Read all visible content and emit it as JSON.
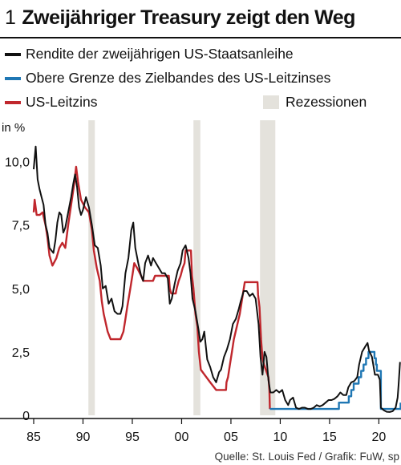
{
  "chart_number": "1",
  "chart_data": {
    "type": "line",
    "title": "Zweijähriger Treasury zeigt den Weg",
    "ylabel": "in %",
    "source": "Quelle: St. Louis Fed / Grafik: FuW, sp",
    "xlim": [
      1985,
      2022
    ],
    "ylim": [
      0,
      11
    ],
    "x_ticks": [
      {
        "value": 1985,
        "label": "85"
      },
      {
        "value": 1990,
        "label": "90"
      },
      {
        "value": 1995,
        "label": "95"
      },
      {
        "value": 2000,
        "label": "00"
      },
      {
        "value": 2005,
        "label": "05"
      },
      {
        "value": 2010,
        "label": "10"
      },
      {
        "value": 2015,
        "label": "15"
      },
      {
        "value": 2020,
        "label": "20"
      }
    ],
    "y_ticks": [
      {
        "value": 0,
        "label": "0"
      },
      {
        "value": 2.5,
        "label": "2,5"
      },
      {
        "value": 5,
        "label": "5,0"
      },
      {
        "value": 7.5,
        "label": "7,5"
      },
      {
        "value": 10,
        "label": "10,0"
      }
    ],
    "recessions_label": "Rezessionen",
    "recessions": [
      [
        1990.55,
        1991.2
      ],
      [
        2001.2,
        2001.9
      ],
      [
        2007.95,
        2009.5
      ]
    ],
    "series": [
      {
        "name": "Rendite der zweijährigen US-Staatsanleihe",
        "color": "#111111",
        "points": [
          [
            1985.0,
            9.7
          ],
          [
            1985.2,
            10.6
          ],
          [
            1985.4,
            9.3
          ],
          [
            1985.6,
            8.9
          ],
          [
            1985.8,
            8.6
          ],
          [
            1986.0,
            8.3
          ],
          [
            1986.2,
            7.5
          ],
          [
            1986.4,
            7.2
          ],
          [
            1986.6,
            6.6
          ],
          [
            1986.8,
            6.5
          ],
          [
            1987.0,
            6.4
          ],
          [
            1987.2,
            6.9
          ],
          [
            1987.4,
            7.6
          ],
          [
            1987.6,
            8.0
          ],
          [
            1987.8,
            7.9
          ],
          [
            1988.0,
            7.2
          ],
          [
            1988.2,
            7.4
          ],
          [
            1988.5,
            8.0
          ],
          [
            1988.8,
            8.6
          ],
          [
            1989.0,
            9.1
          ],
          [
            1989.2,
            9.5
          ],
          [
            1989.4,
            9.0
          ],
          [
            1989.6,
            8.2
          ],
          [
            1989.8,
            7.9
          ],
          [
            1990.0,
            8.1
          ],
          [
            1990.3,
            8.6
          ],
          [
            1990.6,
            8.2
          ],
          [
            1990.9,
            7.5
          ],
          [
            1991.2,
            6.7
          ],
          [
            1991.5,
            6.6
          ],
          [
            1991.8,
            5.9
          ],
          [
            1992.0,
            5.0
          ],
          [
            1992.3,
            5.1
          ],
          [
            1992.6,
            4.4
          ],
          [
            1992.9,
            4.6
          ],
          [
            1993.2,
            4.1
          ],
          [
            1993.5,
            4.0
          ],
          [
            1993.8,
            4.0
          ],
          [
            1994.0,
            4.3
          ],
          [
            1994.3,
            5.6
          ],
          [
            1994.6,
            6.2
          ],
          [
            1994.9,
            7.3
          ],
          [
            1995.1,
            7.6
          ],
          [
            1995.3,
            6.6
          ],
          [
            1995.6,
            6.0
          ],
          [
            1995.9,
            5.5
          ],
          [
            1996.1,
            5.3
          ],
          [
            1996.3,
            6.0
          ],
          [
            1996.6,
            6.3
          ],
          [
            1996.9,
            5.9
          ],
          [
            1997.1,
            6.2
          ],
          [
            1997.4,
            6.0
          ],
          [
            1997.7,
            5.8
          ],
          [
            1998.0,
            5.6
          ],
          [
            1998.3,
            5.6
          ],
          [
            1998.6,
            5.4
          ],
          [
            1998.8,
            4.4
          ],
          [
            1999.0,
            4.6
          ],
          [
            1999.3,
            5.2
          ],
          [
            1999.6,
            5.7
          ],
          [
            1999.9,
            6.0
          ],
          [
            2000.1,
            6.5
          ],
          [
            2000.4,
            6.7
          ],
          [
            2000.7,
            6.2
          ],
          [
            2000.9,
            5.6
          ],
          [
            2001.1,
            4.6
          ],
          [
            2001.4,
            4.1
          ],
          [
            2001.7,
            3.4
          ],
          [
            2001.9,
            2.9
          ],
          [
            2002.1,
            3.0
          ],
          [
            2002.3,
            3.3
          ],
          [
            2002.6,
            2.2
          ],
          [
            2002.9,
            1.9
          ],
          [
            2003.2,
            1.5
          ],
          [
            2003.5,
            1.3
          ],
          [
            2003.8,
            1.7
          ],
          [
            2004.0,
            1.8
          ],
          [
            2004.3,
            2.3
          ],
          [
            2004.6,
            2.6
          ],
          [
            2004.9,
            3.0
          ],
          [
            2005.2,
            3.6
          ],
          [
            2005.5,
            3.8
          ],
          [
            2005.8,
            4.2
          ],
          [
            2006.0,
            4.5
          ],
          [
            2006.3,
            4.9
          ],
          [
            2006.6,
            4.9
          ],
          [
            2006.9,
            4.7
          ],
          [
            2007.2,
            4.8
          ],
          [
            2007.5,
            4.6
          ],
          [
            2007.8,
            3.6
          ],
          [
            2008.0,
            2.3
          ],
          [
            2008.2,
            1.6
          ],
          [
            2008.4,
            2.5
          ],
          [
            2008.6,
            2.3
          ],
          [
            2008.8,
            1.4
          ],
          [
            2009.0,
            0.9
          ],
          [
            2009.3,
            0.9
          ],
          [
            2009.6,
            1.0
          ],
          [
            2009.9,
            0.9
          ],
          [
            2010.2,
            1.0
          ],
          [
            2010.5,
            0.6
          ],
          [
            2010.8,
            0.4
          ],
          [
            2011.0,
            0.6
          ],
          [
            2011.3,
            0.7
          ],
          [
            2011.6,
            0.3
          ],
          [
            2011.9,
            0.25
          ],
          [
            2012.2,
            0.3
          ],
          [
            2012.5,
            0.3
          ],
          [
            2012.8,
            0.25
          ],
          [
            2013.1,
            0.25
          ],
          [
            2013.4,
            0.3
          ],
          [
            2013.7,
            0.4
          ],
          [
            2014.0,
            0.35
          ],
          [
            2014.3,
            0.4
          ],
          [
            2014.6,
            0.5
          ],
          [
            2014.9,
            0.6
          ],
          [
            2015.2,
            0.6
          ],
          [
            2015.5,
            0.65
          ],
          [
            2015.8,
            0.75
          ],
          [
            2016.1,
            0.9
          ],
          [
            2016.4,
            0.8
          ],
          [
            2016.7,
            0.8
          ],
          [
            2016.9,
            1.1
          ],
          [
            2017.2,
            1.3
          ],
          [
            2017.5,
            1.35
          ],
          [
            2017.8,
            1.5
          ],
          [
            2018.0,
            2.0
          ],
          [
            2018.3,
            2.5
          ],
          [
            2018.6,
            2.7
          ],
          [
            2018.85,
            2.85
          ],
          [
            2019.0,
            2.55
          ],
          [
            2019.3,
            2.3
          ],
          [
            2019.6,
            1.6
          ],
          [
            2019.9,
            1.6
          ],
          [
            2020.1,
            1.4
          ],
          [
            2020.2,
            0.3
          ],
          [
            2020.5,
            0.2
          ],
          [
            2020.8,
            0.14
          ],
          [
            2021.1,
            0.13
          ],
          [
            2021.4,
            0.16
          ],
          [
            2021.7,
            0.3
          ],
          [
            2021.9,
            0.7
          ],
          [
            2022.0,
            1.2
          ],
          [
            2022.15,
            2.1
          ]
        ]
      },
      {
        "name": "Obere Grenze des Zielbandes des US-Leitzinses",
        "color": "#1f77b4",
        "points": [
          [
            2008.95,
            0.25
          ],
          [
            2015.95,
            0.25
          ],
          [
            2015.95,
            0.5
          ],
          [
            2016.95,
            0.5
          ],
          [
            2016.95,
            0.75
          ],
          [
            2017.2,
            0.75
          ],
          [
            2017.2,
            1.0
          ],
          [
            2017.45,
            1.0
          ],
          [
            2017.45,
            1.25
          ],
          [
            2017.95,
            1.25
          ],
          [
            2017.95,
            1.5
          ],
          [
            2018.2,
            1.5
          ],
          [
            2018.2,
            1.75
          ],
          [
            2018.45,
            1.75
          ],
          [
            2018.45,
            2.0
          ],
          [
            2018.7,
            2.0
          ],
          [
            2018.7,
            2.25
          ],
          [
            2018.95,
            2.25
          ],
          [
            2018.95,
            2.5
          ],
          [
            2019.55,
            2.5
          ],
          [
            2019.55,
            2.25
          ],
          [
            2019.7,
            2.25
          ],
          [
            2019.7,
            2.0
          ],
          [
            2019.8,
            2.0
          ],
          [
            2019.8,
            1.75
          ],
          [
            2020.2,
            1.75
          ],
          [
            2020.2,
            0.25
          ],
          [
            2022.2,
            0.25
          ],
          [
            2022.2,
            0.5
          ]
        ]
      },
      {
        "name": "US-Leitzins",
        "color": "#c0272d",
        "points": [
          [
            1985.0,
            8.0
          ],
          [
            1985.1,
            8.5
          ],
          [
            1985.3,
            7.9
          ],
          [
            1985.6,
            7.9
          ],
          [
            1985.9,
            8.0
          ],
          [
            1986.2,
            7.5
          ],
          [
            1986.4,
            7.0
          ],
          [
            1986.6,
            6.3
          ],
          [
            1986.9,
            5.9
          ],
          [
            1987.3,
            6.2
          ],
          [
            1987.6,
            6.6
          ],
          [
            1987.9,
            6.8
          ],
          [
            1988.2,
            6.6
          ],
          [
            1988.5,
            7.5
          ],
          [
            1988.8,
            8.3
          ],
          [
            1989.1,
            9.1
          ],
          [
            1989.3,
            9.8
          ],
          [
            1989.5,
            9.2
          ],
          [
            1989.8,
            8.5
          ],
          [
            1990.2,
            8.2
          ],
          [
            1990.6,
            8.0
          ],
          [
            1990.9,
            7.3
          ],
          [
            1991.1,
            6.5
          ],
          [
            1991.4,
            5.8
          ],
          [
            1991.7,
            5.3
          ],
          [
            1991.9,
            4.5
          ],
          [
            1992.1,
            4.0
          ],
          [
            1992.5,
            3.3
          ],
          [
            1992.8,
            3.0
          ],
          [
            1993.8,
            3.0
          ],
          [
            1994.1,
            3.3
          ],
          [
            1994.3,
            3.8
          ],
          [
            1994.5,
            4.3
          ],
          [
            1994.8,
            5.0
          ],
          [
            1995.0,
            5.5
          ],
          [
            1995.2,
            6.0
          ],
          [
            1995.5,
            5.8
          ],
          [
            1995.9,
            5.5
          ],
          [
            1996.1,
            5.3
          ],
          [
            1997.1,
            5.3
          ],
          [
            1997.3,
            5.5
          ],
          [
            1998.7,
            5.5
          ],
          [
            1998.8,
            5.0
          ],
          [
            1998.95,
            4.8
          ],
          [
            1999.4,
            4.8
          ],
          [
            1999.5,
            5.0
          ],
          [
            1999.7,
            5.3
          ],
          [
            1999.9,
            5.5
          ],
          [
            2000.1,
            5.8
          ],
          [
            2000.3,
            6.0
          ],
          [
            2000.4,
            6.5
          ],
          [
            2000.95,
            6.5
          ],
          [
            2001.05,
            5.5
          ],
          [
            2001.2,
            5.0
          ],
          [
            2001.4,
            4.0
          ],
          [
            2001.6,
            3.5
          ],
          [
            2001.75,
            2.5
          ],
          [
            2001.95,
            1.8
          ],
          [
            2002.9,
            1.3
          ],
          [
            2003.5,
            1.0
          ],
          [
            2004.5,
            1.0
          ],
          [
            2004.55,
            1.3
          ],
          [
            2004.7,
            1.5
          ],
          [
            2004.9,
            2.0
          ],
          [
            2005.1,
            2.5
          ],
          [
            2005.3,
            3.0
          ],
          [
            2005.6,
            3.5
          ],
          [
            2005.9,
            4.0
          ],
          [
            2006.1,
            4.5
          ],
          [
            2006.4,
            5.25
          ],
          [
            2007.7,
            5.25
          ],
          [
            2007.75,
            4.75
          ],
          [
            2007.9,
            4.25
          ],
          [
            2008.05,
            3.0
          ],
          [
            2008.2,
            2.25
          ],
          [
            2008.35,
            2.0
          ],
          [
            2008.8,
            1.5
          ],
          [
            2008.9,
            1.0
          ],
          [
            2008.95,
            0.25
          ]
        ]
      }
    ]
  }
}
